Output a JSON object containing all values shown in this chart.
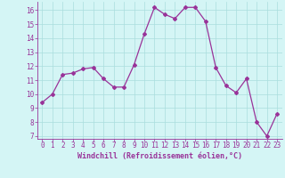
{
  "x": [
    0,
    1,
    2,
    3,
    4,
    5,
    6,
    7,
    8,
    9,
    10,
    11,
    12,
    13,
    14,
    15,
    16,
    17,
    18,
    19,
    20,
    21,
    22,
    23
  ],
  "y": [
    9.4,
    10.0,
    11.4,
    11.5,
    11.8,
    11.9,
    11.1,
    10.5,
    10.5,
    12.1,
    14.3,
    16.2,
    15.7,
    15.4,
    16.2,
    16.2,
    15.2,
    11.9,
    10.6,
    10.1,
    11.1,
    8.0,
    7.0,
    8.6
  ],
  "line_color": "#993399",
  "marker": "D",
  "marker_size": 2,
  "bg_color": "#d4f5f5",
  "grid_color": "#aadddd",
  "xlabel": "Windchill (Refroidissement éolien,°C)",
  "xlabel_color": "#993399",
  "tick_color": "#993399",
  "spine_color": "#993399",
  "ylim": [
    6.8,
    16.6
  ],
  "yticks": [
    7,
    8,
    9,
    10,
    11,
    12,
    13,
    14,
    15,
    16
  ],
  "xlim": [
    -0.5,
    23.5
  ],
  "xticks": [
    0,
    1,
    2,
    3,
    4,
    5,
    6,
    7,
    8,
    9,
    10,
    11,
    12,
    13,
    14,
    15,
    16,
    17,
    18,
    19,
    20,
    21,
    22,
    23
  ],
  "tick_fontsize": 5.5,
  "xlabel_fontsize": 6.0
}
